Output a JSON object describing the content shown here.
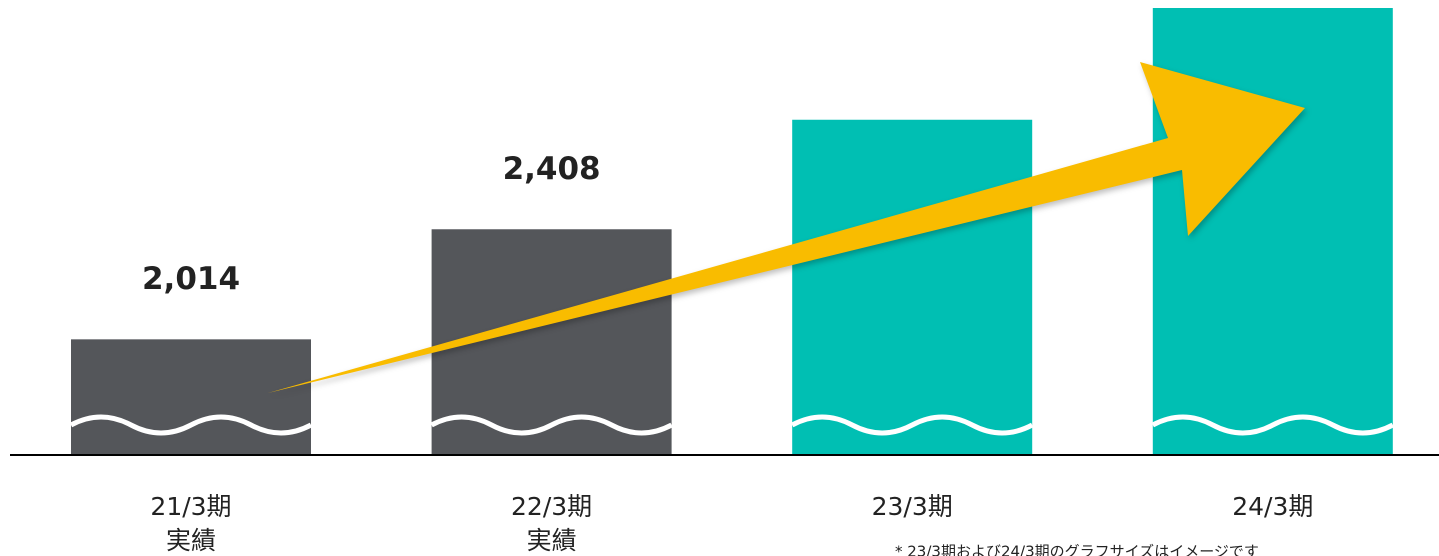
{
  "chart_data": {
    "type": "bar",
    "categories": [
      "21/3期",
      "22/3期",
      "23/3期",
      "24/3期"
    ],
    "sublabels": [
      "実績",
      "実績",
      null,
      null
    ],
    "values": [
      2014,
      2408,
      2800,
      3200
    ],
    "value_labels": [
      "2,014",
      "2,408",
      null,
      null
    ],
    "colors": [
      "#54565a",
      "#54565a",
      "#00bfb3",
      "#00bfb3"
    ],
    "ylim": [
      1600,
      3200
    ],
    "note": "* 23/3期および24/3期のグラフサイズはイメージです"
  }
}
